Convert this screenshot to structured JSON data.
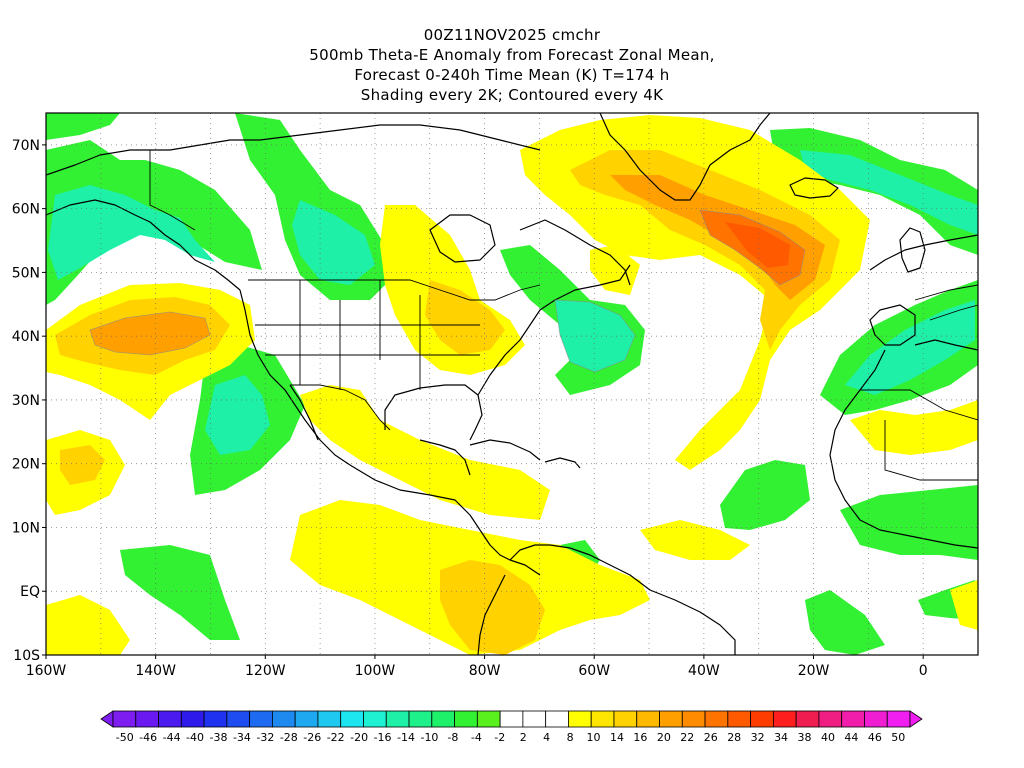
{
  "title": {
    "line1": "00Z11NOV2025 cmchr",
    "line2": "500mb Theta-E Anomaly from Forecast Zonal Mean,",
    "line3": "Forecast 0-240h Time Mean (K) T=174 h",
    "line4": "Shading every 2K; Contoured every 4K"
  },
  "map": {
    "lat_labels": [
      "70N",
      "60N",
      "50N",
      "40N",
      "30N",
      "20N",
      "10N",
      "EQ",
      "10S"
    ],
    "lon_labels": [
      "160W",
      "140W",
      "120W",
      "100W",
      "80W",
      "60W",
      "40W",
      "20W",
      "0"
    ],
    "extent": {
      "lon": [
        -160,
        10
      ],
      "lat": [
        -10,
        75
      ]
    },
    "grid": "dotted every 10 degrees"
  },
  "colorbar": {
    "labels": [
      "-50",
      "-46",
      "-44",
      "-40",
      "-38",
      "-34",
      "-32",
      "-28",
      "-26",
      "-22",
      "-20",
      "-16",
      "-14",
      "-10",
      "-8",
      "-4",
      "-2",
      "2",
      "4",
      "8",
      "10",
      "14",
      "16",
      "20",
      "22",
      "26",
      "28",
      "32",
      "34",
      "38",
      "40",
      "44",
      "46",
      "50"
    ],
    "colors": [
      "#7d1df0",
      "#6a1af0",
      "#4b1aef",
      "#2d1aeb",
      "#1e32f0",
      "#1e4cf0",
      "#1e6af0",
      "#1e8af0",
      "#1ea8f0",
      "#1ec8f0",
      "#1ee6f0",
      "#1ef0d2",
      "#1ef0a8",
      "#1ef08a",
      "#1ef06a",
      "#32f032",
      "#5af01e",
      "#ffffff",
      "#ffffff",
      "#ffffff",
      "#ffff00",
      "#ffe600",
      "#ffd200",
      "#ffb900",
      "#ffa000",
      "#ff8c00",
      "#ff7300",
      "#ff5a00",
      "#ff3c00",
      "#ff1e1e",
      "#f01e50",
      "#f01e82",
      "#f01eaa",
      "#f01ed2",
      "#f01ef0"
    ]
  },
  "colors": {
    "green_light": "#32f032",
    "green": "#1ef06a",
    "teal": "#1ef0a8",
    "yellow": "#ffff00",
    "gold": "#ffd200",
    "orange": "#ffa000",
    "orange_dark": "#ff7300",
    "red_orange": "#ff5a00"
  }
}
